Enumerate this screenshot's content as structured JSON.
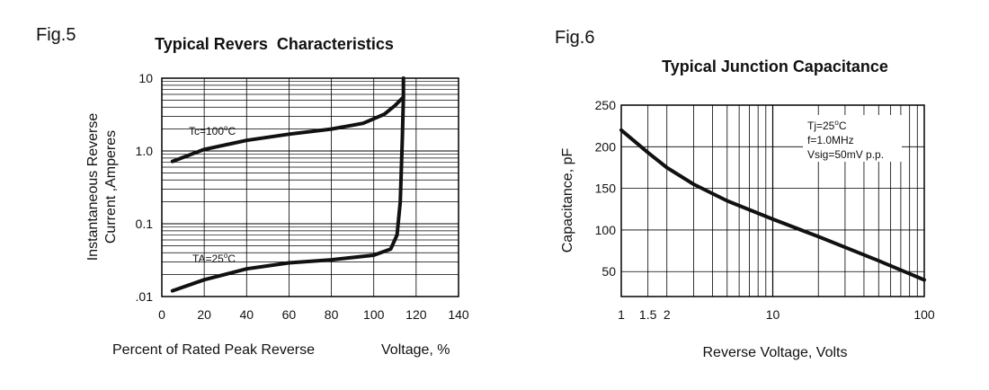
{
  "chart_data": [
    {
      "type": "line",
      "fig_label": "Fig.5",
      "title": "Typical Revers  Characteristics",
      "xlabel_left": "Percent of Rated Peak Reverse",
      "xlabel_right": "Voltage, %",
      "ylabel_line1": "Instantaneous Reverse",
      "ylabel_line2": "Current ,Amperes",
      "xlim": [
        0,
        140
      ],
      "ylim": [
        0.01,
        10
      ],
      "yscale": "log",
      "x_ticks": [
        "0",
        "20",
        "40",
        "60",
        "80",
        "100",
        "120",
        "140"
      ],
      "y_ticks": [
        "10",
        "1.0",
        "0.1",
        ".01"
      ],
      "series": [
        {
          "name": "Tc=100°C",
          "label": "Tc=100",
          "label_sup": "o",
          "label_unit": "C",
          "x": [
            5,
            20,
            40,
            60,
            80,
            95,
            105,
            110,
            114,
            114
          ],
          "y": [
            0.72,
            1.05,
            1.4,
            1.7,
            2.0,
            2.4,
            3.2,
            4.2,
            5.5,
            10
          ]
        },
        {
          "name": "TA=25°C",
          "label": "TA=25",
          "label_sup": "o",
          "label_unit": "C",
          "x": [
            5,
            20,
            40,
            60,
            80,
            100,
            108,
            111,
            112.5,
            113.5,
            114
          ],
          "y": [
            0.012,
            0.017,
            0.024,
            0.029,
            0.032,
            0.037,
            0.045,
            0.07,
            0.2,
            1.5,
            5.5
          ]
        }
      ]
    },
    {
      "type": "line",
      "fig_label": "Fig.6",
      "title": "Typical Junction Capacitance",
      "xlabel": "Reverse Voltage, Volts",
      "ylabel": "Capacitance, pF",
      "xscale": "log",
      "xlim": [
        1,
        100
      ],
      "ylim": [
        20,
        250
      ],
      "x_ticks": [
        "1",
        "1.5",
        "2",
        "10",
        "100"
      ],
      "y_ticks": [
        "250",
        "200",
        "150",
        "100",
        "50"
      ],
      "annotations": [
        "Tj=25",
        "o",
        "C",
        "f=1.0MHz",
        "Vsig=50mV p.p."
      ],
      "series": [
        {
          "name": "Capacitance",
          "x": [
            1,
            1.5,
            2,
            3,
            5,
            10,
            20,
            50,
            100
          ],
          "y": [
            220,
            193,
            175,
            155,
            135,
            113,
            92,
            63,
            40
          ]
        }
      ]
    }
  ]
}
